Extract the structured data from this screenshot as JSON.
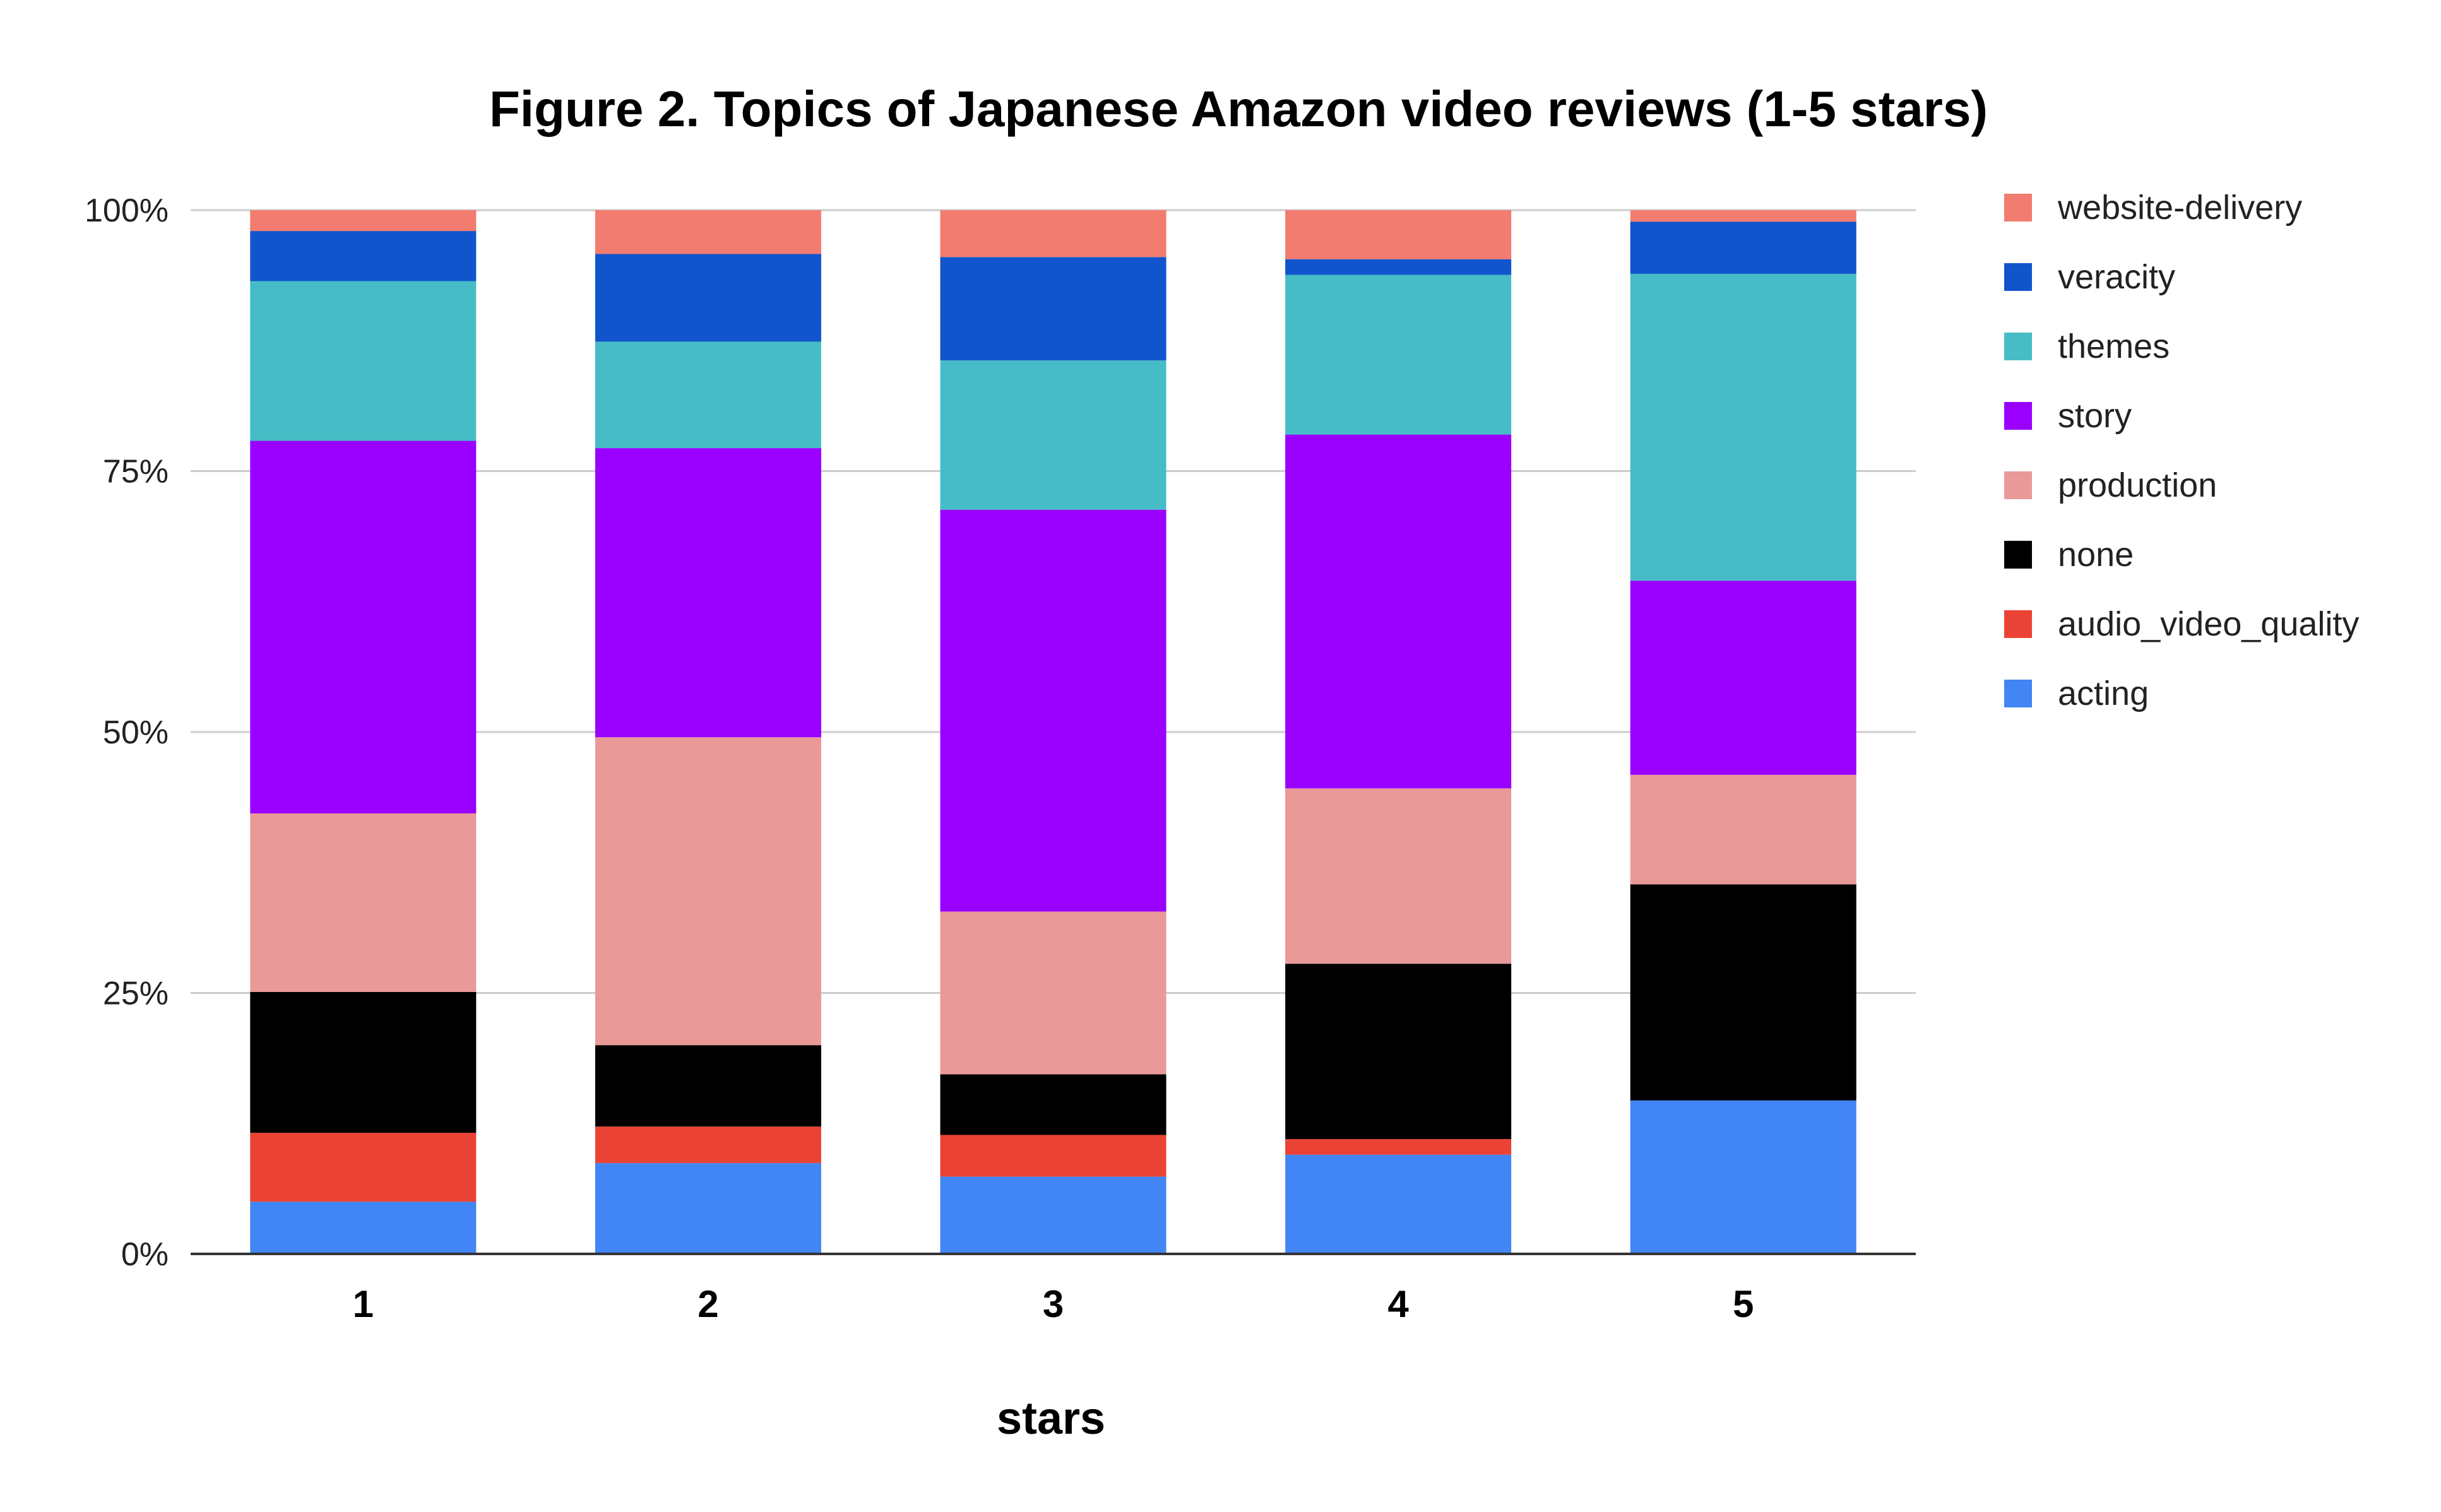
{
  "chart_data": {
    "type": "bar",
    "stacked": "percent",
    "title": "Figure 2. Topics of Japanese Amazon video reviews (1-5 stars)",
    "xlabel": "stars",
    "ylabel": "",
    "ylim": [
      0,
      100
    ],
    "y_ticks": [
      "0%",
      "25%",
      "50%",
      "75%",
      "100%"
    ],
    "y_tick_values": [
      0,
      25,
      50,
      75,
      100
    ],
    "categories": [
      "1",
      "2",
      "3",
      "4",
      "5"
    ],
    "grid": true,
    "legend_position": "right",
    "series": [
      {
        "name": "acting",
        "color": "#4285f4",
        "values": [
          5.0,
          8.7,
          7.4,
          9.5,
          14.7
        ]
      },
      {
        "name": "audio_video_quality",
        "color": "#ea4335",
        "values": [
          6.6,
          3.5,
          4.0,
          1.5,
          0.0
        ]
      },
      {
        "name": "none",
        "color": "#000000",
        "values": [
          13.5,
          7.8,
          5.8,
          16.8,
          20.7
        ]
      },
      {
        "name": "production",
        "color": "#ea9999",
        "values": [
          17.1,
          29.5,
          15.6,
          16.8,
          10.5
        ]
      },
      {
        "name": "story",
        "color": "#9900ff",
        "values": [
          35.7,
          27.7,
          38.5,
          33.9,
          18.6
        ]
      },
      {
        "name": "themes",
        "color": "#46bdc6",
        "values": [
          15.3,
          10.2,
          14.3,
          15.3,
          29.4
        ]
      },
      {
        "name": "veracity",
        "color": "#1155cc",
        "values": [
          4.8,
          8.4,
          9.9,
          1.5,
          5.0
        ]
      },
      {
        "name": "website-delivery",
        "color": "#f27c6f",
        "values": [
          2.0,
          4.2,
          4.5,
          4.7,
          1.1
        ]
      }
    ]
  }
}
